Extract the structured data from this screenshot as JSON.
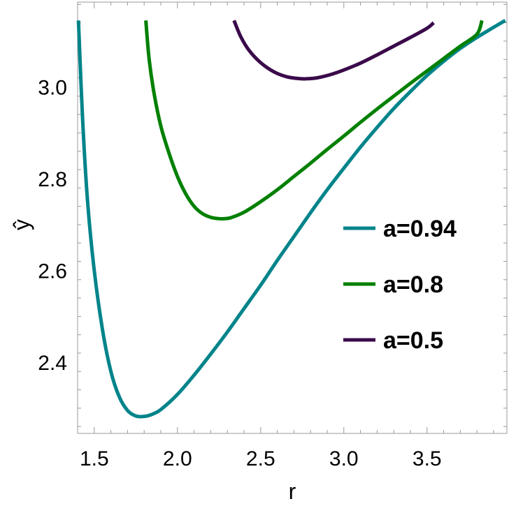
{
  "chart_data": {
    "type": "line",
    "title": "",
    "xlabel": "r",
    "ylabel": "ŷ",
    "xlim": [
      1.4,
      3.98
    ],
    "ylim": [
      2.245,
      3.185
    ],
    "xticks": [
      1.5,
      2.0,
      2.5,
      3.0,
      3.5
    ],
    "xtick_labels": [
      "1.5",
      "2.0",
      "2.5",
      "3.0",
      "3.5"
    ],
    "yticks": [
      2.4,
      2.6,
      2.8,
      3.0
    ],
    "ytick_labels": [
      "2.4",
      "2.6",
      "2.8",
      "3.0"
    ],
    "grid": false,
    "legend_position": "right",
    "series": [
      {
        "name": "a=0.94",
        "color": "#00848a",
        "x": [
          1.405,
          1.43,
          1.46,
          1.5,
          1.55,
          1.6,
          1.65,
          1.7,
          1.75,
          1.8,
          1.85,
          1.9,
          2.0,
          2.1,
          2.2,
          2.3,
          2.4,
          2.5,
          2.6,
          2.7,
          2.8,
          2.9,
          3.0,
          3.1,
          3.2,
          3.3,
          3.4,
          3.5,
          3.6,
          3.7,
          3.8,
          3.9,
          3.97
        ],
        "y": [
          3.145,
          2.93,
          2.75,
          2.6,
          2.47,
          2.38,
          2.325,
          2.295,
          2.283,
          2.282,
          2.287,
          2.297,
          2.33,
          2.372,
          2.418,
          2.466,
          2.517,
          2.568,
          2.622,
          2.674,
          2.726,
          2.776,
          2.823,
          2.869,
          2.912,
          2.953,
          2.99,
          3.025,
          3.056,
          3.084,
          3.108,
          3.13,
          3.145
        ]
      },
      {
        "name": "a=0.8",
        "color": "#018001",
        "x": [
          1.81,
          1.83,
          1.86,
          1.9,
          1.95,
          2.0,
          2.05,
          2.1,
          2.15,
          2.2,
          2.25,
          2.28,
          2.32,
          2.4,
          2.5,
          2.6,
          2.7,
          2.8,
          2.9,
          3.0,
          3.1,
          3.2,
          3.3,
          3.4,
          3.5,
          3.6,
          3.7,
          3.8,
          3.83
        ],
        "y": [
          3.145,
          3.06,
          2.985,
          2.915,
          2.855,
          2.805,
          2.767,
          2.74,
          2.724,
          2.716,
          2.713,
          2.713,
          2.715,
          2.727,
          2.75,
          2.776,
          2.805,
          2.834,
          2.864,
          2.893,
          2.923,
          2.952,
          2.98,
          3.008,
          3.035,
          3.062,
          3.089,
          3.115,
          3.145
        ]
      },
      {
        "name": "a=0.5",
        "color": "#3a0a4a",
        "x": [
          2.34,
          2.38,
          2.43,
          2.5,
          2.58,
          2.66,
          2.74,
          2.78,
          2.84,
          2.92,
          3.0,
          3.1,
          3.2,
          3.3,
          3.4,
          3.5,
          3.54
        ],
        "y": [
          3.145,
          3.11,
          3.08,
          3.053,
          3.033,
          3.022,
          3.018,
          3.018,
          3.02,
          3.027,
          3.037,
          3.052,
          3.07,
          3.089,
          3.108,
          3.128,
          3.14
        ]
      }
    ]
  }
}
